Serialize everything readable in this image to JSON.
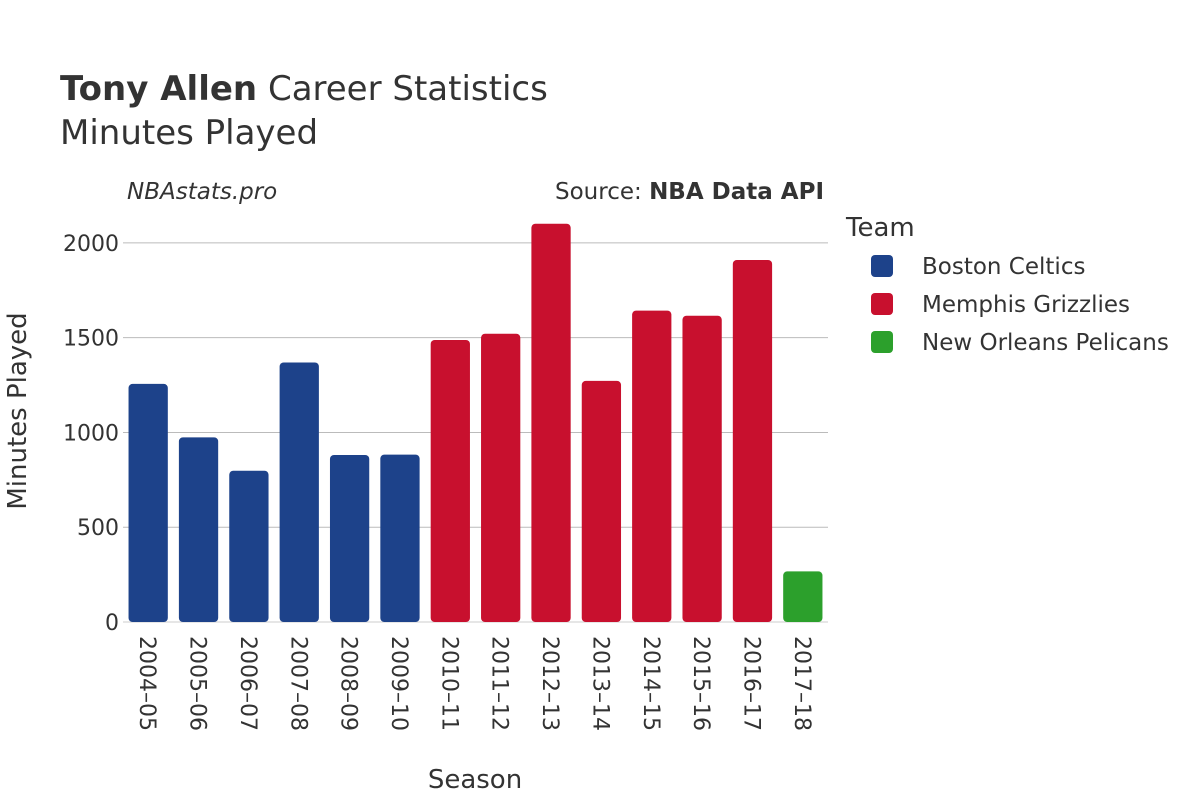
{
  "header": {
    "title_bold": "Tony Allen",
    "title_rest": " Career Statistics",
    "subtitle": "Minutes Played"
  },
  "credits": {
    "site": "NBAstats.pro",
    "source_prefix": "Source: ",
    "source_bold": "NBA Data API"
  },
  "legend": {
    "title": "Team",
    "items": [
      {
        "label": "Boston Celtics",
        "color": "#1d428a"
      },
      {
        "label": "Memphis Grizzlies",
        "color": "#c8102e"
      },
      {
        "label": "New Orleans Pelicans",
        "color": "#2ca02c"
      }
    ]
  },
  "chart_data": {
    "type": "bar",
    "xlabel": "Season",
    "ylabel": "Minutes Played",
    "ylim": [
      0,
      2200
    ],
    "yticks": [
      0,
      500,
      1000,
      1500,
      2000
    ],
    "grid": true,
    "legend_position": "right",
    "categories": [
      "2004–05",
      "2005–06",
      "2006–07",
      "2007–08",
      "2008–09",
      "2009–10",
      "2010–11",
      "2011–12",
      "2012–13",
      "2013–14",
      "2014–15",
      "2015–16",
      "2016–17",
      "2017–18"
    ],
    "values": [
      1256,
      974,
      798,
      1369,
      881,
      883,
      1488,
      1521,
      2101,
      1272,
      1643,
      1616,
      1910,
      267
    ],
    "teams": [
      "Boston Celtics",
      "Boston Celtics",
      "Boston Celtics",
      "Boston Celtics",
      "Boston Celtics",
      "Boston Celtics",
      "Memphis Grizzlies",
      "Memphis Grizzlies",
      "Memphis Grizzlies",
      "Memphis Grizzlies",
      "Memphis Grizzlies",
      "Memphis Grizzlies",
      "Memphis Grizzlies",
      "New Orleans Pelicans"
    ]
  }
}
